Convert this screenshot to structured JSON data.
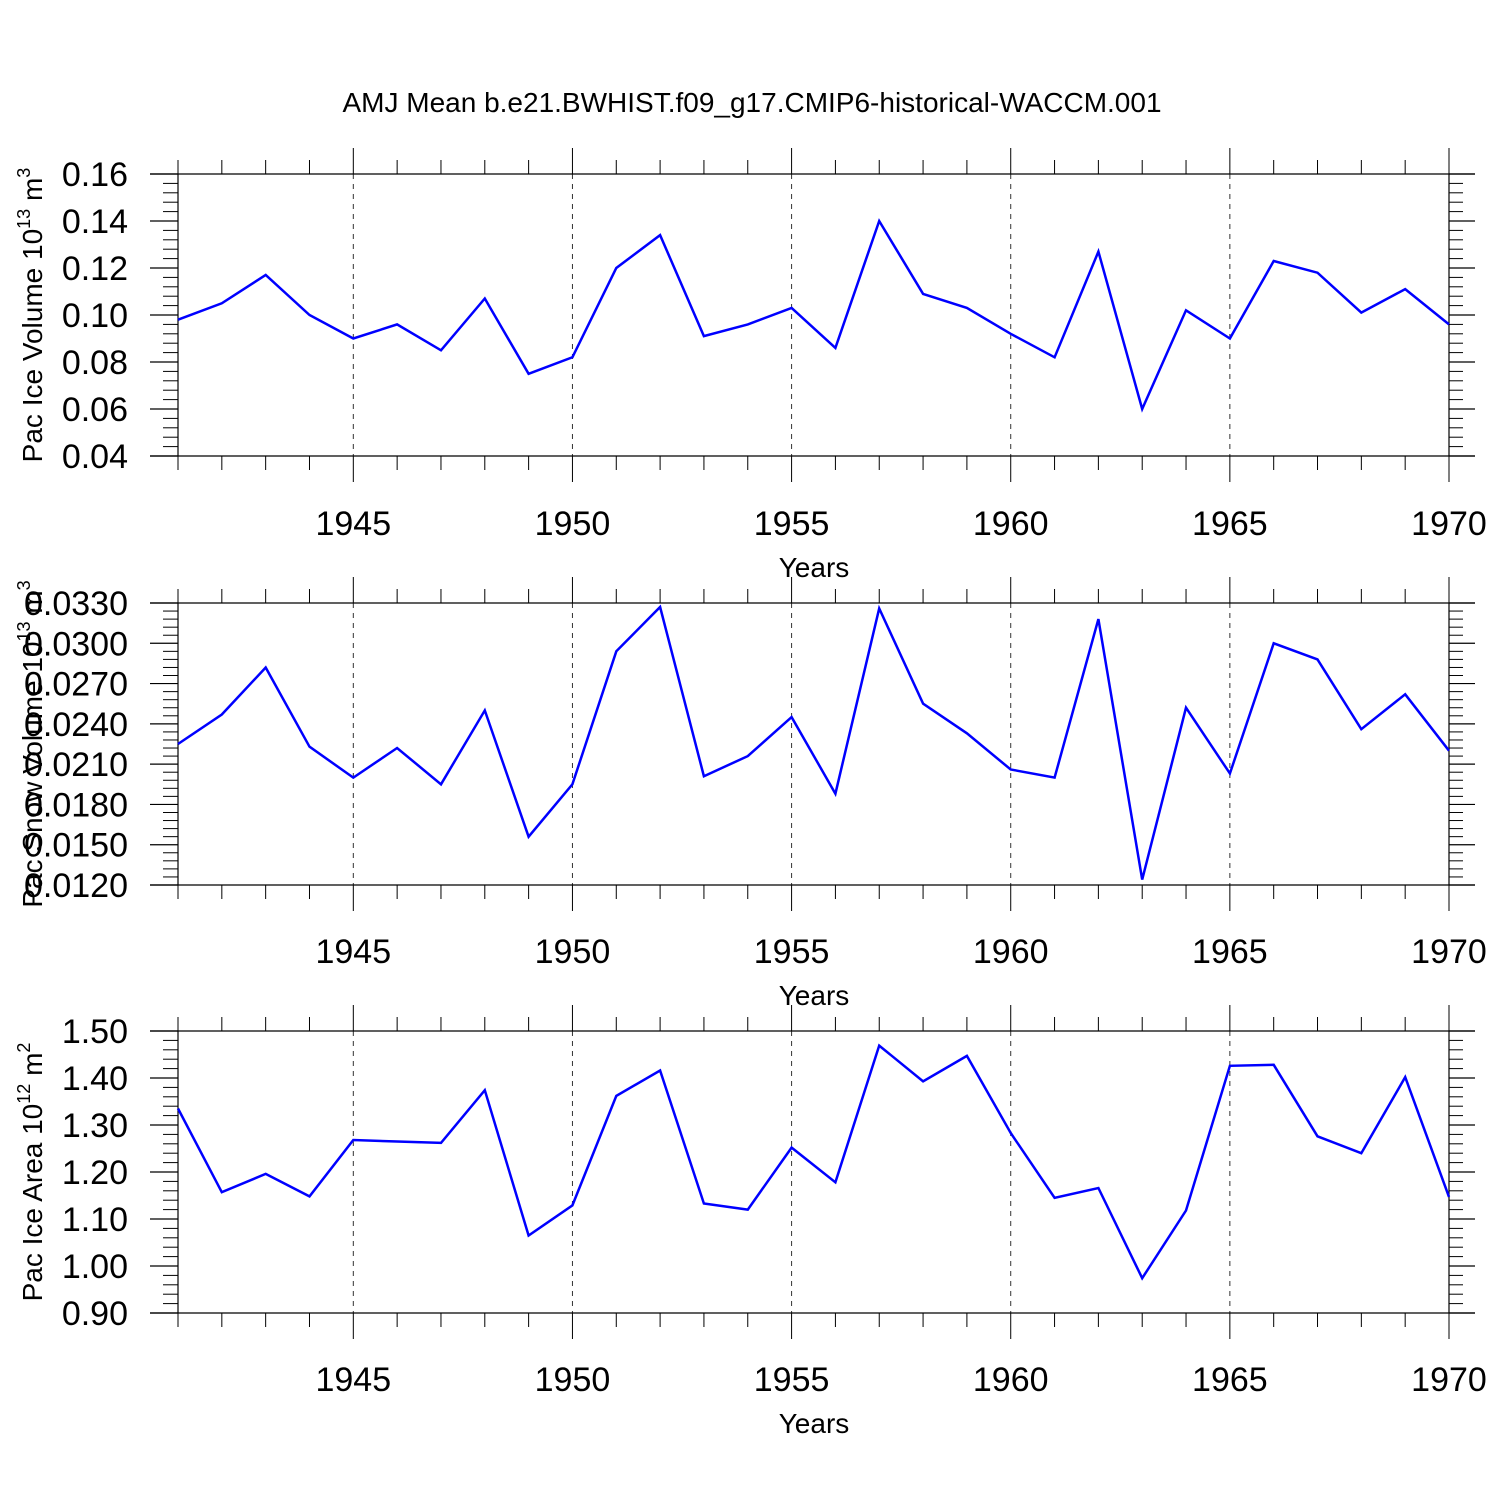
{
  "title": "AMJ Mean b.e21.BWHIST.f09_g17.CMIP6-historical-WACCM.001",
  "colors": {
    "line": "#0000ff",
    "axis": "#000000",
    "grid": "#000000"
  },
  "chart_data": [
    {
      "type": "line",
      "ylabel": "Pac Ice Volume 10",
      "ylabel_exp": "13",
      "ylabel_unit": "m",
      "ylabel_unit_exp": "3",
      "xlabel": "Years",
      "xlim": [
        1941,
        1970
      ],
      "ylim": [
        0.04,
        0.16
      ],
      "yticks": [
        0.04,
        0.06,
        0.08,
        0.1,
        0.12,
        0.14,
        0.16
      ],
      "ytick_labels": [
        "0.04",
        "0.06",
        "0.08",
        "0.10",
        "0.12",
        "0.14",
        "0.16"
      ],
      "xticks": [
        1945,
        1950,
        1955,
        1960,
        1965,
        1970
      ],
      "xtick_labels": [
        "1945",
        "1950",
        "1955",
        "1960",
        "1965",
        "1970"
      ],
      "x": [
        1941,
        1942,
        1943,
        1944,
        1945,
        1946,
        1947,
        1948,
        1949,
        1950,
        1951,
        1952,
        1953,
        1954,
        1955,
        1956,
        1957,
        1958,
        1959,
        1960,
        1961,
        1962,
        1963,
        1964,
        1965,
        1966,
        1967,
        1968,
        1969,
        1970
      ],
      "values": [
        0.098,
        0.105,
        0.117,
        0.1,
        0.09,
        0.096,
        0.085,
        0.107,
        0.075,
        0.082,
        0.12,
        0.134,
        0.091,
        0.096,
        0.103,
        0.086,
        0.14,
        0.109,
        0.103,
        0.092,
        0.082,
        0.127,
        0.06,
        0.102,
        0.09,
        0.123,
        0.118,
        0.101,
        0.111,
        0.096
      ]
    },
    {
      "type": "line",
      "ylabel": "Pac Snow Volume 10",
      "ylabel_exp": "13",
      "ylabel_unit": "m",
      "ylabel_unit_exp": "3",
      "xlabel": "Years",
      "xlim": [
        1941,
        1970
      ],
      "ylim": [
        0.012,
        0.033
      ],
      "yticks": [
        0.012,
        0.015,
        0.018,
        0.021,
        0.024,
        0.027,
        0.03,
        0.033
      ],
      "ytick_labels": [
        "0.0120",
        "0.0150",
        "0.0180",
        "0.0210",
        "0.0240",
        "0.0270",
        "0.0300",
        "0.0330"
      ],
      "xticks": [
        1945,
        1950,
        1955,
        1960,
        1965,
        1970
      ],
      "xtick_labels": [
        "1945",
        "1950",
        "1955",
        "1960",
        "1965",
        "1970"
      ],
      "x": [
        1941,
        1942,
        1943,
        1944,
        1945,
        1946,
        1947,
        1948,
        1949,
        1950,
        1951,
        1952,
        1953,
        1954,
        1955,
        1956,
        1957,
        1958,
        1959,
        1960,
        1961,
        1962,
        1963,
        1964,
        1965,
        1966,
        1967,
        1968,
        1969,
        1970
      ],
      "values": [
        0.0225,
        0.0247,
        0.0282,
        0.0223,
        0.02,
        0.0222,
        0.0195,
        0.025,
        0.0156,
        0.0195,
        0.0294,
        0.0327,
        0.0201,
        0.0216,
        0.0245,
        0.0188,
        0.0326,
        0.0255,
        0.0233,
        0.0206,
        0.02,
        0.0318,
        0.0124,
        0.0252,
        0.0203,
        0.03,
        0.0288,
        0.0236,
        0.0262,
        0.022
      ]
    },
    {
      "type": "line",
      "ylabel": "Pac Ice Area 10",
      "ylabel_exp": "12",
      "ylabel_unit": "m",
      "ylabel_unit_exp": "2",
      "xlabel": "Years",
      "xlim": [
        1941,
        1970
      ],
      "ylim": [
        0.9,
        1.5
      ],
      "yticks": [
        0.9,
        1.0,
        1.1,
        1.2,
        1.3,
        1.4,
        1.5
      ],
      "ytick_labels": [
        "0.90",
        "1.00",
        "1.10",
        "1.20",
        "1.30",
        "1.40",
        "1.50"
      ],
      "xticks": [
        1945,
        1950,
        1955,
        1960,
        1965,
        1970
      ],
      "xtick_labels": [
        "1945",
        "1950",
        "1955",
        "1960",
        "1965",
        "1970"
      ],
      "x": [
        1941,
        1942,
        1943,
        1944,
        1945,
        1946,
        1947,
        1948,
        1949,
        1950,
        1951,
        1952,
        1953,
        1954,
        1955,
        1956,
        1957,
        1958,
        1959,
        1960,
        1961,
        1962,
        1963,
        1964,
        1965,
        1966,
        1967,
        1968,
        1969,
        1970
      ],
      "values": [
        1.335,
        1.157,
        1.196,
        1.148,
        1.268,
        1.265,
        1.262,
        1.374,
        1.065,
        1.129,
        1.362,
        1.416,
        1.133,
        1.12,
        1.252,
        1.178,
        1.469,
        1.393,
        1.447,
        1.283,
        1.145,
        1.166,
        0.974,
        1.118,
        1.426,
        1.428,
        1.276,
        1.24,
        1.402,
        1.147
      ]
    }
  ]
}
